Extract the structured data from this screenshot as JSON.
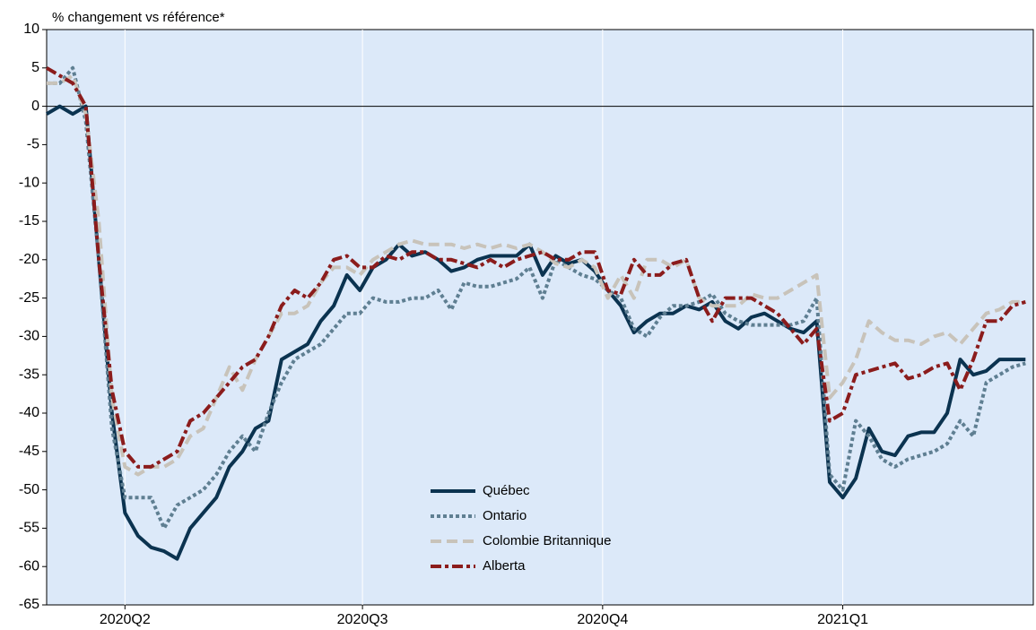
{
  "chart_data": {
    "type": "line",
    "title": "% changement vs référence*",
    "x": [
      0,
      5,
      10,
      15,
      20,
      25,
      30,
      35,
      40,
      45,
      50,
      55,
      60,
      65,
      70,
      75,
      80,
      85,
      90,
      95,
      100,
      105,
      110,
      115,
      120,
      125,
      130,
      135,
      140,
      145,
      150,
      155,
      160,
      165,
      170,
      175,
      180,
      185,
      190,
      195,
      200,
      205,
      210,
      215,
      220,
      225,
      230,
      235,
      240,
      245,
      250,
      255,
      260,
      265,
      270,
      275,
      280,
      285,
      290,
      295,
      300,
      305,
      310,
      315,
      320,
      325,
      330,
      335,
      340,
      345,
      350,
      355,
      360,
      365,
      370,
      375
    ],
    "xlim": [
      0,
      378
    ],
    "xticks": [
      {
        "value": 30,
        "label": "2020Q2"
      },
      {
        "value": 121,
        "label": "2020Q3"
      },
      {
        "value": 213,
        "label": "2020Q4"
      },
      {
        "value": 305,
        "label": "2021Q1"
      }
    ],
    "ylim": [
      -65,
      10
    ],
    "yticks": [
      -65,
      -60,
      -55,
      -50,
      -45,
      -40,
      -35,
      -30,
      -25,
      -20,
      -15,
      -10,
      -5,
      0,
      5,
      10
    ],
    "grid": true,
    "legend": "lower center",
    "series": [
      {
        "name": "Québec",
        "color": "#0b3350",
        "style": "solid",
        "values": [
          -1,
          0,
          -1,
          0,
          -20,
          -40,
          -53,
          -56,
          -57.5,
          -58,
          -59,
          -55,
          -53,
          -51,
          -47,
          -45,
          -42,
          -41,
          -33,
          -32,
          -31,
          -28,
          -26,
          -22,
          -24,
          -21,
          -20,
          -18,
          -19.5,
          -19,
          -20,
          -21.5,
          -21,
          -20,
          -19.5,
          -19.5,
          -19.5,
          -18,
          -22,
          -19.5,
          -20.5,
          -20,
          -21.5,
          -24,
          -26,
          -29.5,
          -28,
          -27,
          -27,
          -26,
          -26.5,
          -25.5,
          -28,
          -29,
          -27.5,
          -27,
          -28,
          -29,
          -29.5,
          -28,
          -49,
          -51,
          -48.5,
          -42,
          -45,
          -45.5,
          -43,
          -42.5,
          -42.5,
          -40,
          -33,
          -35,
          -34.5,
          -33,
          -33,
          -33
        ]
      },
      {
        "name": "Ontario",
        "color": "#5f7f92",
        "style": "dotted",
        "values": [
          3,
          3,
          5,
          -2,
          -20,
          -42,
          -51,
          -51,
          -51,
          -55,
          -52,
          -51,
          -50,
          -48,
          -45,
          -43,
          -45,
          -40,
          -36,
          -33,
          -32,
          -31,
          -29,
          -27,
          -27,
          -25,
          -25.5,
          -25.5,
          -25,
          -25,
          -24,
          -26.5,
          -23,
          -23.5,
          -23.5,
          -23,
          -22.5,
          -21,
          -25,
          -20,
          -21,
          -22,
          -22.5,
          -24,
          -25,
          -29,
          -30,
          -27.5,
          -26,
          -26,
          -25.5,
          -24.5,
          -27,
          -28,
          -28.5,
          -28.5,
          -28.5,
          -28.5,
          -28,
          -25,
          -48,
          -50,
          -41,
          -43,
          -46,
          -47,
          -46,
          -45.5,
          -45,
          -44,
          -41,
          -43,
          -36,
          -35,
          -34,
          -33.5
        ]
      },
      {
        "name": "Colombie Britannique",
        "color": "#c8c3ba",
        "style": "dashed",
        "values": [
          3,
          3,
          4,
          -1,
          -15,
          -38,
          -47,
          -48,
          -47,
          -47,
          -46,
          -43,
          -42,
          -38,
          -34,
          -37,
          -33,
          -30,
          -27,
          -27,
          -26,
          -23,
          -21,
          -21,
          -22,
          -20,
          -19,
          -18,
          -17.5,
          -18,
          -18,
          -18,
          -18.5,
          -18,
          -18.5,
          -18,
          -18.5,
          -18,
          -19,
          -20.5,
          -21,
          -20,
          -21,
          -25,
          -22,
          -25,
          -20,
          -20,
          -21,
          -20,
          -25,
          -26,
          -26,
          -26,
          -24.5,
          -25,
          -25,
          -24,
          -23,
          -22,
          -38,
          -36,
          -33,
          -28,
          -29.5,
          -30.5,
          -30.5,
          -31,
          -30,
          -29.5,
          -31,
          -29,
          -27,
          -26.5,
          -25.5,
          -25.5
        ]
      },
      {
        "name": "Alberta",
        "color": "#8b1c1c",
        "style": "dashdot",
        "values": [
          5,
          4,
          3,
          0,
          -20,
          -37,
          -45,
          -47,
          -47,
          -46,
          -45,
          -41,
          -40,
          -38,
          -36,
          -34,
          -33,
          -30,
          -26,
          -24,
          -25,
          -23,
          -20,
          -19.5,
          -21,
          -21,
          -19.5,
          -20,
          -19,
          -19,
          -20,
          -20,
          -20.5,
          -21,
          -20,
          -21,
          -20,
          -19.5,
          -19,
          -20,
          -20,
          -19,
          -19,
          -24,
          -24.5,
          -20,
          -22,
          -22,
          -20.5,
          -20,
          -25,
          -28,
          -25,
          -25,
          -25,
          -26,
          -27,
          -29,
          -31,
          -29,
          -41,
          -40,
          -35,
          -34.5,
          -34,
          -33.5,
          -35.5,
          -35,
          -34,
          -33.5,
          -37,
          -33,
          -28,
          -28,
          -26,
          -25.5
        ]
      }
    ]
  }
}
